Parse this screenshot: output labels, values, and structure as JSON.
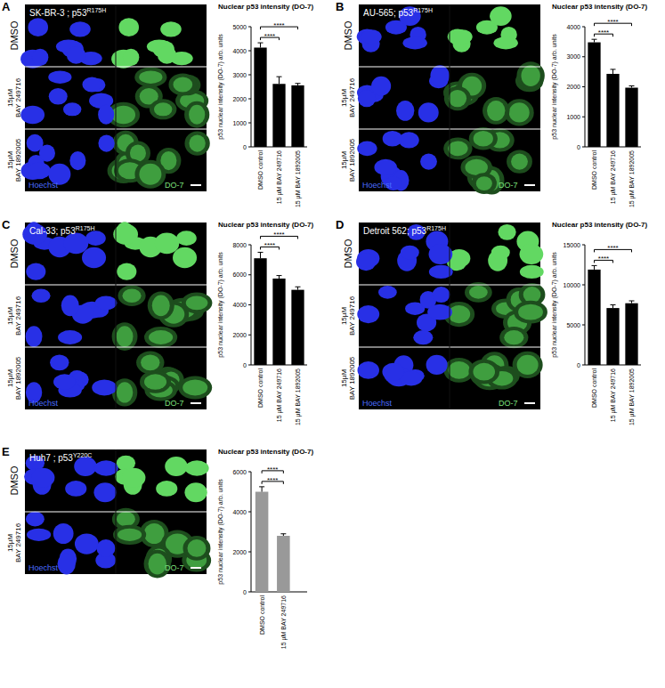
{
  "chart_data": [
    {
      "type": "bar",
      "panel": "A",
      "cell_line": "SK-BR-3 ; p53",
      "mutation": "R175H",
      "title": "Nuclear p53 intensity (DO-7)",
      "y_label": "p53 nuclear intensity (DO-7) arb. units",
      "categories": [
        "DMSO control",
        "15 µM BAY 249716",
        "15 µM BAY 1892005"
      ],
      "values": [
        4130,
        2620,
        2560
      ],
      "errors": [
        200,
        300,
        80
      ],
      "color": "#000000",
      "ylim": [
        0,
        5000
      ],
      "yticks": [
        0,
        1000,
        2000,
        3000,
        4000,
        5000
      ],
      "annotations": [
        "****",
        "****"
      ],
      "image_rows": [
        [
          "DMSO"
        ],
        [
          "15µM",
          "BAY 249716"
        ],
        [
          "15µM",
          "BAY 1892005"
        ]
      ],
      "channels": [
        "Hoechst",
        "DO-7"
      ]
    },
    {
      "type": "bar",
      "panel": "B",
      "cell_line": "AU-565; p53",
      "mutation": "R175H",
      "title": "Nuclear p53 intensity (DO-7)",
      "y_label": "p53 nuclear intensity (DO-7) arb. units",
      "categories": [
        "DMSO control",
        "15 µM BAY 249716",
        "15 µM BAY 1892005"
      ],
      "values": [
        3480,
        2430,
        1970
      ],
      "errors": [
        100,
        150,
        60
      ],
      "color": "#000000",
      "ylim": [
        0,
        4000
      ],
      "yticks": [
        0,
        1000,
        2000,
        3000,
        4000
      ],
      "annotations": [
        "****",
        "****"
      ],
      "image_rows": [
        [
          "DMSO"
        ],
        [
          "15µM",
          "BAY 249716"
        ],
        [
          "15µM",
          "BAY 1892005"
        ]
      ],
      "channels": [
        "Hoechst",
        "DO-7"
      ]
    },
    {
      "type": "bar",
      "panel": "C",
      "cell_line": "Cal-33; p53",
      "mutation": "R175H",
      "title": "Nuclear p53 intensity (DO-7)",
      "y_label": "p53 nuclear intensity (DO-7) arb. units",
      "categories": [
        "DMSO control",
        "15 µM BAY 249716",
        "15 µM BAY 1892005"
      ],
      "values": [
        7100,
        5750,
        5000
      ],
      "errors": [
        400,
        200,
        200
      ],
      "color": "#000000",
      "ylim": [
        0,
        8000
      ],
      "yticks": [
        0,
        2000,
        4000,
        6000,
        8000
      ],
      "annotations": [
        "****",
        "****"
      ],
      "image_rows": [
        [
          "DMSO"
        ],
        [
          "15µM",
          "BAY 249716"
        ],
        [
          "15µM",
          "BAY 1892005"
        ]
      ],
      "channels": [
        "Hoechst",
        "DO-7"
      ]
    },
    {
      "type": "bar",
      "panel": "D",
      "cell_line": "Detroit 562; p53",
      "mutation": "R175H",
      "title": "Nuclear p53 intensity (DO-7)",
      "y_label": "p53 nuclear intensity (DO-7) arb. units",
      "categories": [
        "DMSO control",
        "15 µM BAY 249716",
        "15 µM BAY 1892005"
      ],
      "values": [
        11900,
        7100,
        7700
      ],
      "errors": [
        500,
        400,
        300
      ],
      "color": "#000000",
      "ylim": [
        0,
        15000
      ],
      "yticks": [
        0,
        5000,
        10000,
        15000
      ],
      "annotations": [
        "****",
        "****"
      ],
      "image_rows": [
        [
          "DMSO"
        ],
        [
          "15µM",
          "BAY 249716"
        ],
        [
          "15µM",
          "BAY 1892005"
        ]
      ],
      "channels": [
        "Hoechst",
        "DO-7"
      ]
    },
    {
      "type": "bar",
      "panel": "E",
      "cell_line": "Huh7 ; p53",
      "mutation": "Y220C",
      "title": "Nuclear p53 intensity (DO-7)",
      "y_label": "p53 nuclear intensity (DO-7) arb. units",
      "categories": [
        "DMSO control",
        "15 µM BAY 249716"
      ],
      "values": [
        5000,
        2800
      ],
      "errors": [
        250,
        100
      ],
      "color": "#999999",
      "ylim": [
        0,
        6000
      ],
      "yticks": [
        0,
        2000,
        4000,
        6000
      ],
      "annotations": [
        "****",
        "****"
      ],
      "image_rows": [
        [
          "DMSO"
        ],
        [
          "15µM",
          "BAY 249716"
        ]
      ],
      "channels": [
        "Hoechst",
        "DO-7"
      ]
    }
  ]
}
